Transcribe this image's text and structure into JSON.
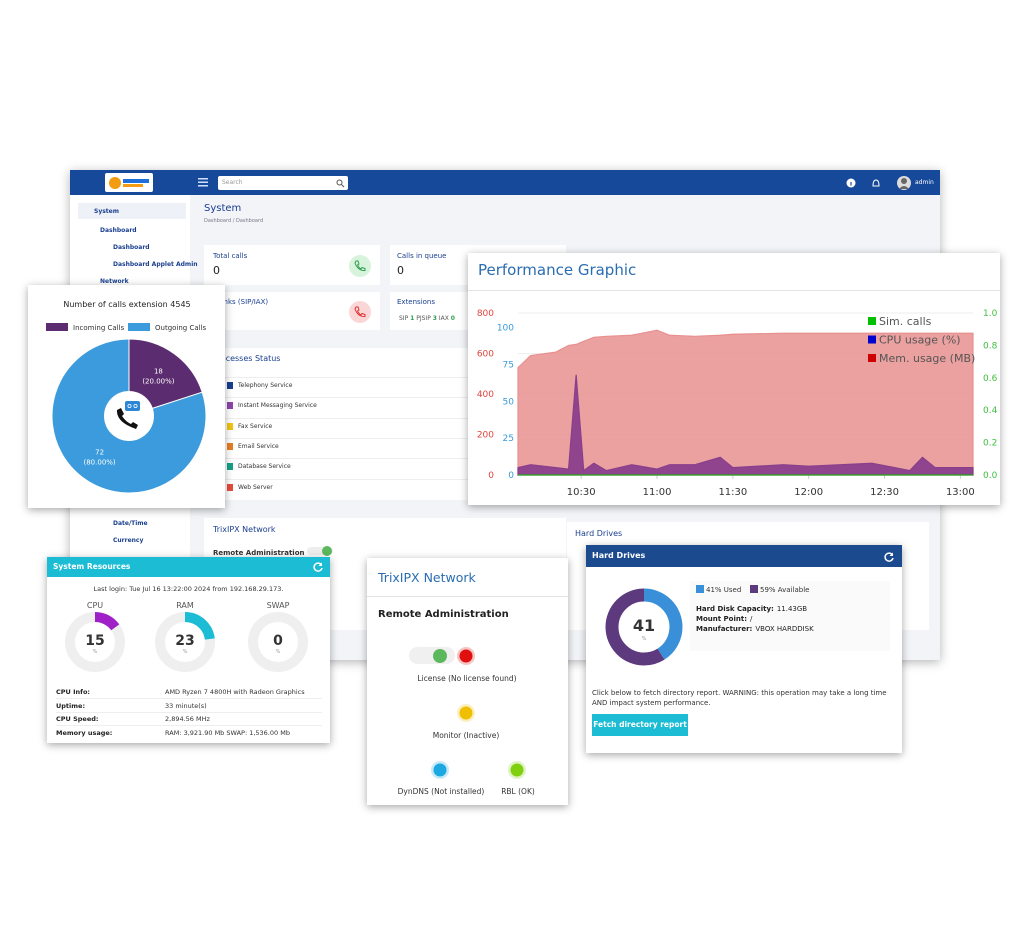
{
  "dashboard": {
    "search_placeholder": "Search",
    "user": "admin",
    "sidebar": [
      "System",
      "Dashboard",
      "Dashboard",
      "Dashboard Applet Admin",
      "Network",
      "Date/Time",
      "Currency"
    ],
    "page_title": "System",
    "breadcrumb": "Dashboard / Dashboard",
    "cards": [
      {
        "label": "Total calls",
        "value": 0
      },
      {
        "label": "Calls in queue",
        "value": 0
      },
      {
        "label": "Trunks (SIP/IAX)"
      },
      {
        "label": "Extensions",
        "items": [
          {
            "name": "SIP",
            "count": 1
          },
          {
            "name": "PJSIP",
            "count": 3
          },
          {
            "name": "IAX",
            "count": 0
          }
        ]
      }
    ],
    "processes": {
      "title": "Processes Status",
      "services": [
        "Telephony Service",
        "Instant Messaging Service",
        "Fax Service",
        "Email Service",
        "Database Service",
        "Web Server"
      ]
    },
    "network_card": {
      "title": "TrixIPX Network",
      "section": "Remote Administration"
    },
    "hard_drives_card": {
      "title": "Hard Drives"
    }
  },
  "chart_data": [
    {
      "type": "pie",
      "title": "Number of calls extension 4545",
      "categories": [
        "Incoming Calls",
        "Outgoing Calls"
      ],
      "values": [
        18,
        72
      ],
      "percent_labels": [
        "(20.00%)",
        "(80.00%)"
      ],
      "colors": [
        "#5b2c6f",
        "#3b9bdc"
      ]
    },
    {
      "type": "area",
      "title": "Performance Graphic",
      "x": [
        "10:05",
        "10:10",
        "10:20",
        "10:25",
        "10:28",
        "10:31",
        "10:35",
        "10:40",
        "10:50",
        "11:00",
        "11:05",
        "11:15",
        "11:25",
        "11:30",
        "11:50",
        "12:00",
        "12:25",
        "12:40",
        "12:45",
        "12:50",
        "13:05"
      ],
      "xlim": [
        "10:05",
        "13:05"
      ],
      "xticks": [
        "10:30",
        "11:00",
        "11:30",
        "12:00",
        "12:30",
        "13:00"
      ],
      "ylim": [
        0,
        800
      ],
      "yticks": [
        0,
        200,
        400,
        600,
        800
      ],
      "y2lim": [
        0,
        110
      ],
      "y2ticks": [
        0,
        25,
        50,
        75,
        100
      ],
      "y3lim": [
        0,
        1
      ],
      "y3ticks": [
        {
          "value": 0,
          "label": "0.0"
        },
        0.2,
        0.4,
        0.6,
        0.8,
        {
          "value": 1,
          "label": "1.0"
        }
      ],
      "axis_colors": {
        "y": "#e0443e",
        "y2": "#3a9ad9",
        "y3": "#3fbf3f"
      },
      "grid": true,
      "series": [
        {
          "name": "Sim. calls",
          "color": "#00c000",
          "axis": "y3",
          "values": [
            0,
            0,
            0,
            0,
            0,
            0,
            0,
            0,
            0,
            0,
            0,
            0,
            0,
            0,
            0,
            0,
            0,
            0,
            0,
            0,
            0
          ]
        },
        {
          "name": "CPU usage (%)",
          "color": "#0000cc",
          "fill": "#8a3f8c",
          "axis": "y2",
          "values": [
            5,
            7,
            5,
            4,
            68,
            3,
            8,
            3,
            7,
            4,
            7,
            7,
            12,
            5,
            7,
            6,
            8,
            3,
            12,
            5,
            5
          ]
        },
        {
          "name": "Mem. usage (MB)",
          "color": "#cc0000",
          "fill": "#e8908f",
          "axis": "y",
          "values": [
            530,
            590,
            607,
            640,
            645,
            660,
            680,
            685,
            690,
            715,
            690,
            685,
            690,
            695,
            700,
            700,
            700,
            700,
            700,
            700,
            700
          ]
        }
      ]
    }
  ],
  "system_resources": {
    "title": "System Resources",
    "last_login": "Last login: Tue Jul 16 13:22:00 2024 from 192.168.29.173.",
    "gauge_range": [
      0,
      100
    ],
    "unit": "%",
    "gauges": [
      {
        "name": "CPU",
        "value": 15,
        "color": "#a020c8"
      },
      {
        "name": "RAM",
        "value": 23,
        "color": "#1bbcd4"
      },
      {
        "name": "SWAP",
        "value": 0,
        "color": "#1bbcd4"
      }
    ],
    "info": [
      [
        "CPU Info:",
        "AMD Ryzen 7 4800H with Radeon Graphics"
      ],
      [
        "Uptime:",
        "33 minute(s)"
      ],
      [
        "CPU Speed:",
        "2,894.56 MHz"
      ],
      [
        "Memory usage:",
        "RAM: 3,921.90 Mb SWAP: 1,536.00 Mb"
      ]
    ]
  },
  "network": {
    "title": "TrixIPX Network",
    "section": "Remote Administration",
    "statuses": [
      {
        "label": "License (No license found)",
        "color": "#e01010"
      },
      {
        "label": "Monitor (Inactive)",
        "color": "#f0c000"
      },
      {
        "label": "DynDNS (Not installed)",
        "color": "#1ca8e0"
      },
      {
        "label": "RBL (OK)",
        "color": "#80d010"
      }
    ]
  },
  "hard_drives": {
    "title": "Hard Drives",
    "used": 41,
    "available": 59,
    "unit": "%",
    "legend": [
      "41% Used",
      "59% Available"
    ],
    "colors": [
      "#3a8fd9",
      "#5d3a7e"
    ],
    "details": [
      [
        "Hard Disk Capacity:",
        "11.43GB"
      ],
      [
        "Mount Point:",
        "/"
      ],
      [
        "Manufacturer:",
        "VBOX HARDDISK"
      ]
    ],
    "note": "Click below to fetch directory report. WARNING: this operation may take a long time AND impact system performance.",
    "button": "Fetch directory report"
  }
}
